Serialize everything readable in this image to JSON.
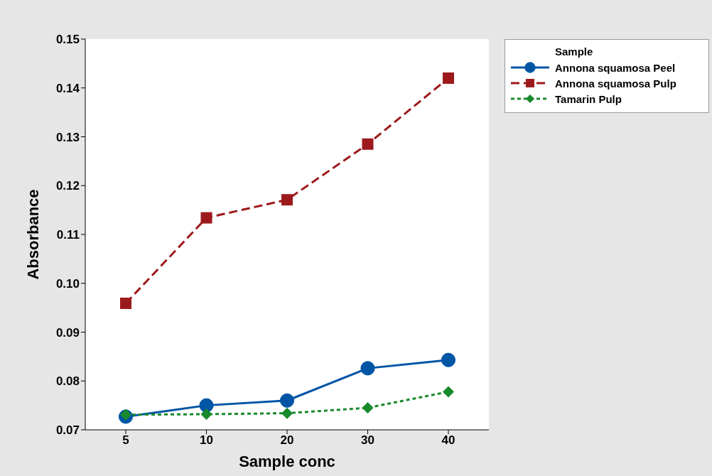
{
  "chart_data": {
    "type": "line",
    "xlabel": "Sample conc",
    "ylabel": "Absorbance",
    "legend_title": "Sample",
    "categories": [
      "5",
      "10",
      "20",
      "30",
      "40"
    ],
    "ylim": [
      0.07,
      0.15
    ],
    "yticks": [
      {
        "value": 0.07,
        "label": "0.07"
      },
      {
        "value": 0.08,
        "label": "0.08"
      },
      {
        "value": 0.09,
        "label": "0.09"
      },
      {
        "value": 0.1,
        "label": "0.10"
      },
      {
        "value": 0.11,
        "label": "0.11"
      },
      {
        "value": 0.12,
        "label": "0.12"
      },
      {
        "value": 0.13,
        "label": "0.13"
      },
      {
        "value": 0.14,
        "label": "0.14"
      },
      {
        "value": 0.15,
        "label": "0.15"
      }
    ],
    "grid": false,
    "legend": "top right",
    "series": [
      {
        "name": "Annona squamosa Peel",
        "color": "#0055a5",
        "marker": "circle",
        "line_style": "solid",
        "values": [
          0.0727,
          0.075,
          0.076,
          0.0826,
          0.0843
        ]
      },
      {
        "name": "Annona squamosa Pulp",
        "color": "#9c1a1c",
        "marker": "square",
        "line_style": "dashed",
        "values": [
          0.0959,
          0.1134,
          0.1171,
          0.1285,
          0.142
        ]
      },
      {
        "name": "Tamarin Pulp",
        "color": "#178a2c",
        "marker": "diamond",
        "line_style": "dotted",
        "values": [
          0.0731,
          0.0732,
          0.0734,
          0.0745,
          0.0778
        ]
      }
    ]
  }
}
